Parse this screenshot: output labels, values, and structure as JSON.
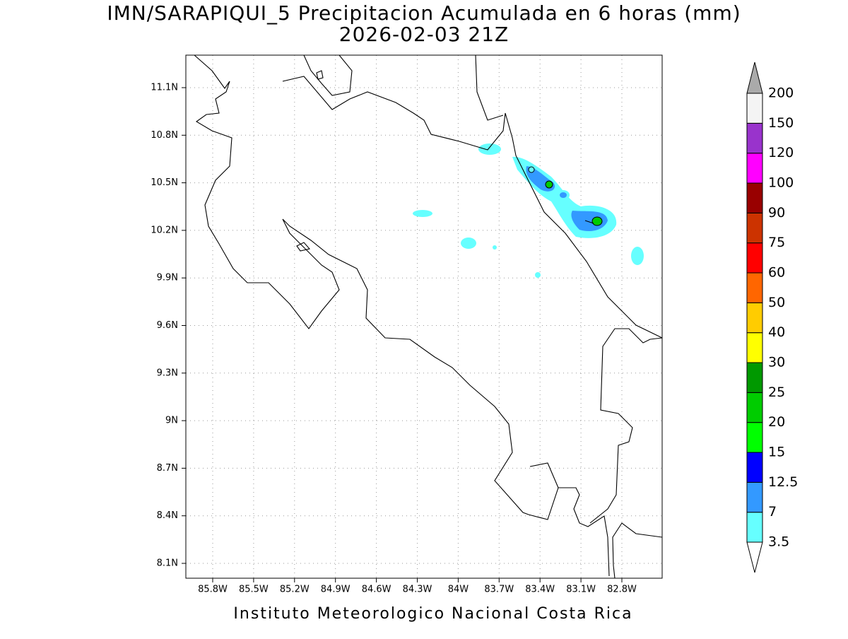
{
  "title": "IMN/SARAPIQUI_5 Precipitacion Acumulada en 6 horas (mm)",
  "subtitle": "2026-02-03 21Z",
  "x_ticks": [
    "85.8W",
    "85.5W",
    "85.2W",
    "84.9W",
    "84.6W",
    "84.3W",
    "84W",
    "83.7W",
    "83.4W",
    "83.1W",
    "82.8W"
  ],
  "y_ticks": [
    "11.1N",
    "10.8N",
    "10.5N",
    "10.2N",
    "9.9N",
    "9.6N",
    "9.3N",
    "9N",
    "8.7N",
    "8.4N",
    "8.1N"
  ],
  "legend": {
    "labels": [
      "3.5",
      "7",
      "12.5",
      "15",
      "20",
      "25",
      "30",
      "40",
      "50",
      "60",
      "75",
      "90",
      "100",
      "120",
      "150",
      "200"
    ],
    "colors": [
      "#66ffff",
      "#3399ff",
      "#0000ff",
      "#00ff00",
      "#00cc00",
      "#009900",
      "#ffff00",
      "#ffcc00",
      "#ff6600",
      "#ff0000",
      "#cc3300",
      "#990000",
      "#ff00ff",
      "#9933cc",
      "#f4f4f4"
    ]
  },
  "footer": "Instituto Meteorologico Nacional Costa Rica"
}
